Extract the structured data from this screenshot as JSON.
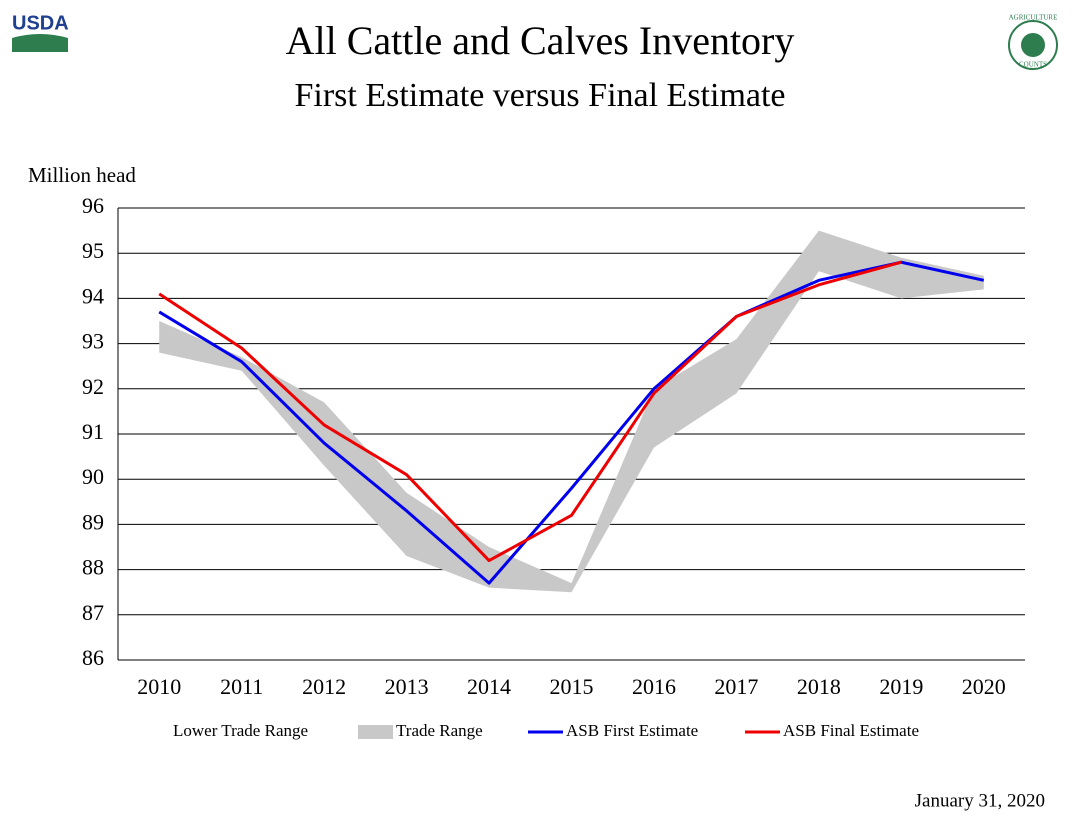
{
  "header": {
    "logo_left": "USDA",
    "logo_right_top": "AGRICULTURE",
    "logo_right_bottom": "COUNTS",
    "date": "January 31, 2020"
  },
  "chart_data": {
    "type": "line",
    "title": "All Cattle and Calves Inventory",
    "subtitle": "First Estimate versus Final Estimate",
    "y_label": "Million head",
    "categories": [
      "2010",
      "2011",
      "2012",
      "2013",
      "2014",
      "2015",
      "2016",
      "2017",
      "2018",
      "2019",
      "2020"
    ],
    "series": [
      {
        "name": "Lower Trade Range",
        "kind": "area",
        "color": "none",
        "values": [
          92.8,
          92.4,
          90.3,
          88.3,
          87.6,
          87.5,
          90.7,
          91.9,
          94.6,
          94.0,
          94.2
        ]
      },
      {
        "name": "Trade Range",
        "kind": "area",
        "stacked": true,
        "color": "#c8c8c8",
        "values": [
          0.7,
          0.3,
          1.4,
          1.4,
          0.9,
          0.2,
          1.3,
          1.2,
          0.9,
          0.9,
          0.3
        ]
      },
      {
        "name": "ASB First Estimate",
        "kind": "line",
        "color": "#0000ee",
        "values": [
          93.7,
          92.6,
          90.8,
          89.3,
          87.7,
          89.8,
          92.0,
          93.6,
          94.4,
          94.8,
          94.4
        ]
      },
      {
        "name": "ASB Final Estimate",
        "kind": "line",
        "color": "#ee0000",
        "values": [
          94.1,
          92.9,
          91.2,
          90.1,
          88.2,
          89.2,
          91.9,
          93.6,
          94.3,
          94.8,
          null
        ]
      }
    ],
    "ylim": [
      86,
      96
    ],
    "yticks": [
      86,
      87,
      88,
      89,
      90,
      91,
      92,
      93,
      94,
      95,
      96
    ],
    "grid": true,
    "legend": "bottom"
  }
}
